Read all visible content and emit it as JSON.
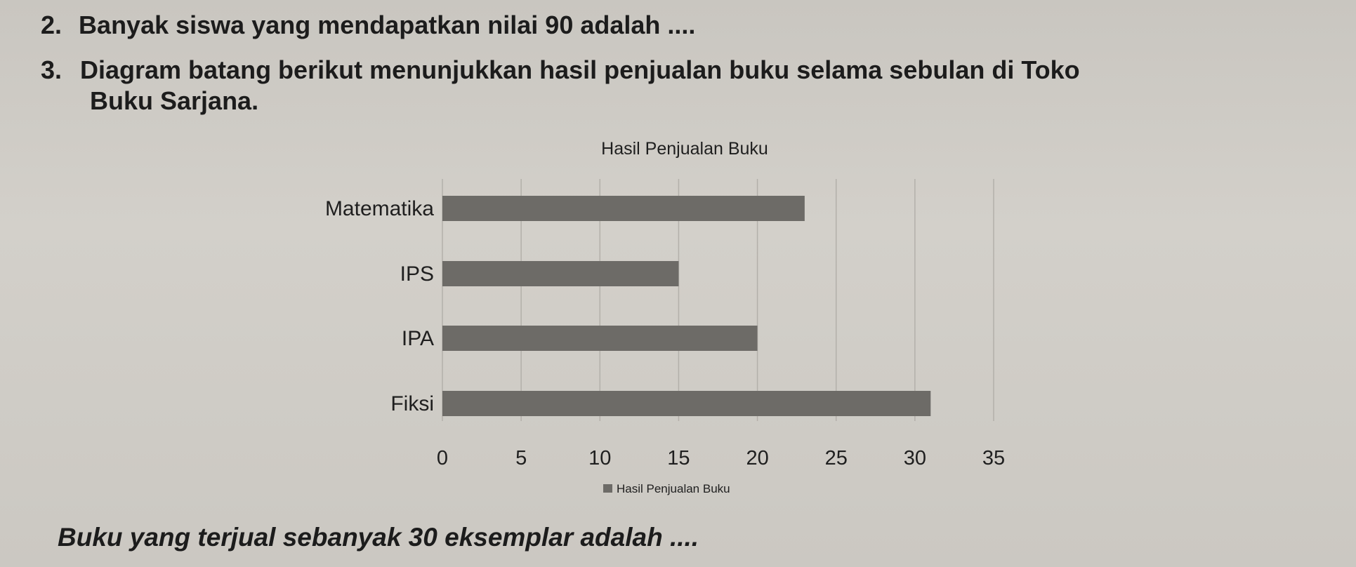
{
  "questions": {
    "q2": {
      "number": "2.",
      "text": "Banyak siswa yang mendapatkan nilai 90 adalah ...."
    },
    "q3": {
      "number": "3.",
      "line1": "Diagram batang berikut menunjukkan hasil penjualan buku selama sebulan di Toko",
      "line2": "Buku Sarjana."
    },
    "question": "Buku yang terjual sebanyak 30 eksemplar adalah ...."
  },
  "colors": {
    "bar": "#6d6b67",
    "grid": "#b3b0aa",
    "text": "#1f1f1f"
  },
  "chart_data": {
    "type": "bar",
    "orientation": "horizontal",
    "title": "Hasil Penjualan Buku",
    "categories": [
      "Matematika",
      "IPS",
      "IPA",
      "Fiksi"
    ],
    "series": [
      {
        "name": "Hasil Penjualan Buku",
        "values": [
          23,
          15,
          20,
          31
        ]
      }
    ],
    "xlim": [
      0,
      35
    ],
    "xticks": [
      0,
      5,
      10,
      15,
      20,
      25,
      30,
      35
    ],
    "grid": true,
    "legend": "bottom"
  }
}
